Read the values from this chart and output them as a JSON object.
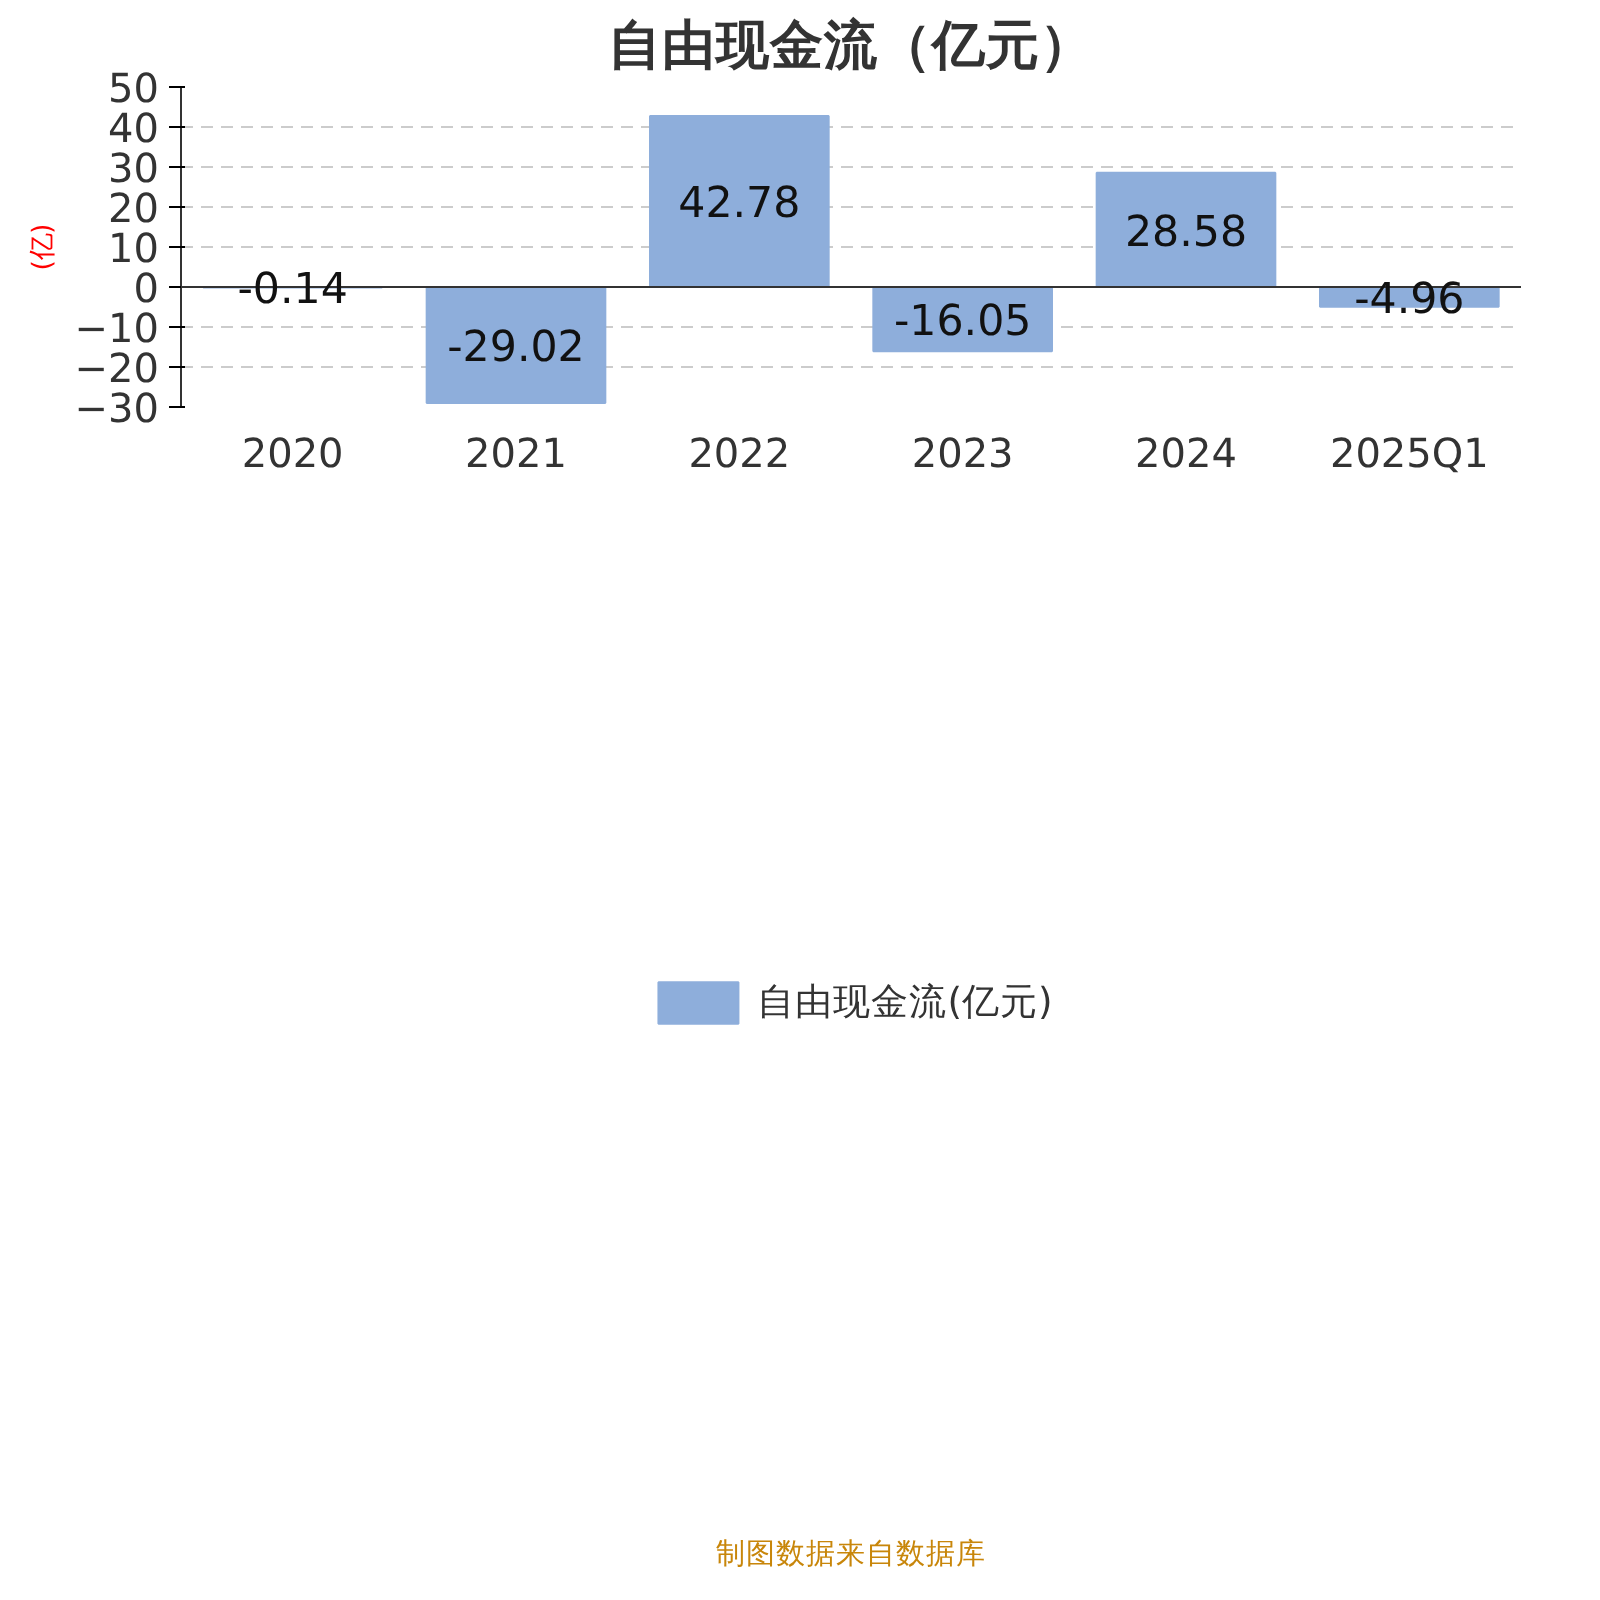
{
  "chart_data": {
    "type": "bar",
    "title": "自由现金流（亿元）",
    "ylabel": "(亿)",
    "categories": [
      "2020",
      "2021",
      "2022",
      "2023",
      "2024",
      "2025Q1"
    ],
    "series": [
      {
        "name": "自由现金流(亿元)",
        "color": "#8eaedb",
        "values": [
          -0.14,
          -29.02,
          42.78,
          -16.05,
          28.58,
          -4.96
        ]
      }
    ],
    "ylim": [
      -30,
      50
    ],
    "yticks": [
      -30,
      -20,
      -10,
      0,
      10,
      20,
      30,
      40,
      50
    ],
    "grid": "y",
    "legend": "bottom",
    "data_labels": true,
    "annotations": [
      "制图数据来自数据库"
    ]
  }
}
